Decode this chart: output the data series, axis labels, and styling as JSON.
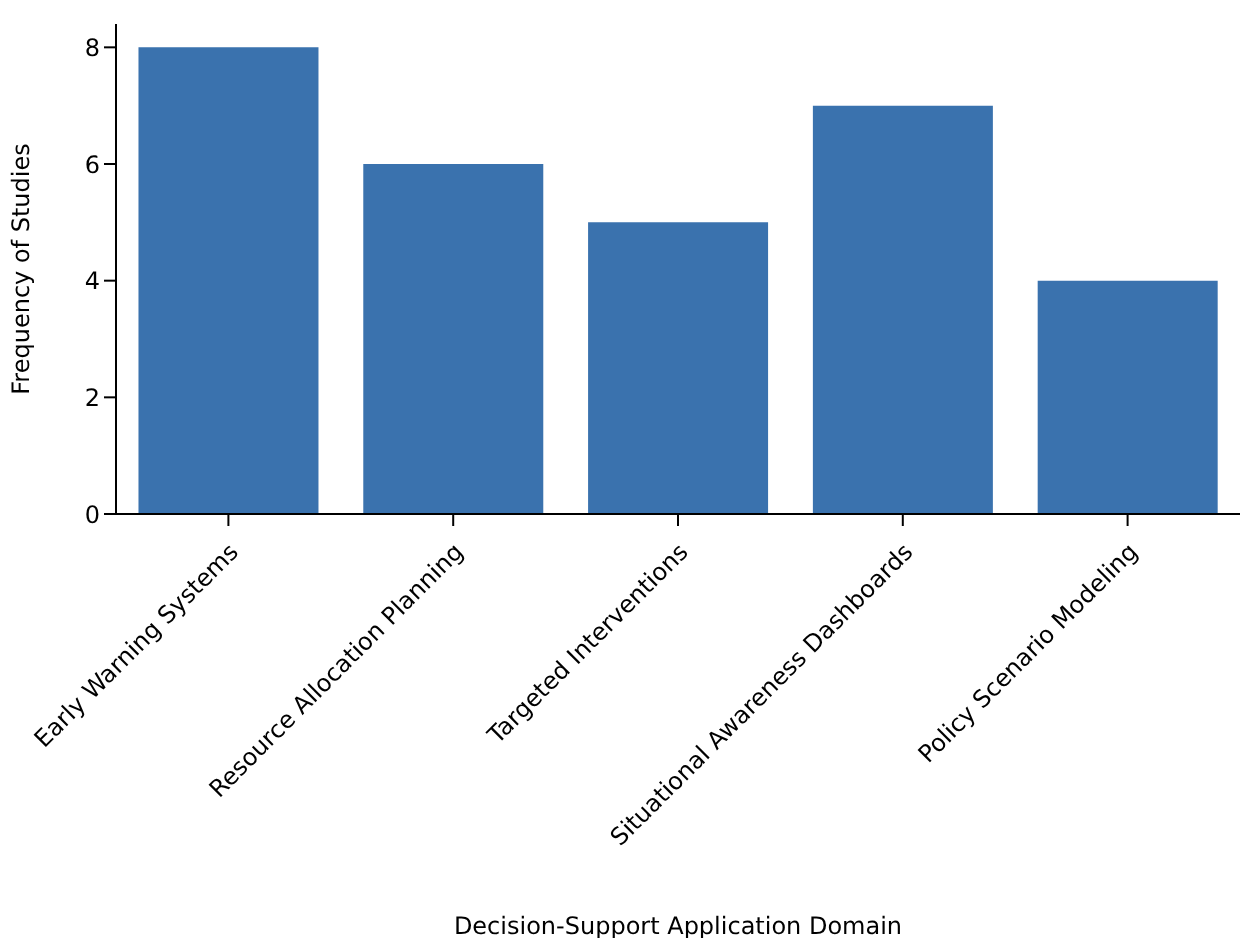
{
  "chart_data": {
    "type": "bar",
    "xlabel": "Decision-Support Application Domain",
    "ylabel": "Frequency of Studies",
    "categories": [
      "Early Warning Systems",
      "Resource Allocation Planning",
      "Targeted Interventions",
      "Situational Awareness Dashboards",
      "Policy Scenario Modeling"
    ],
    "values": [
      8,
      6,
      5,
      7,
      4
    ],
    "color": "#3a72ae",
    "ylim": [
      0,
      8.4
    ],
    "yticks": [
      0,
      2,
      4,
      6,
      8
    ],
    "grid": false,
    "legend": false
  }
}
